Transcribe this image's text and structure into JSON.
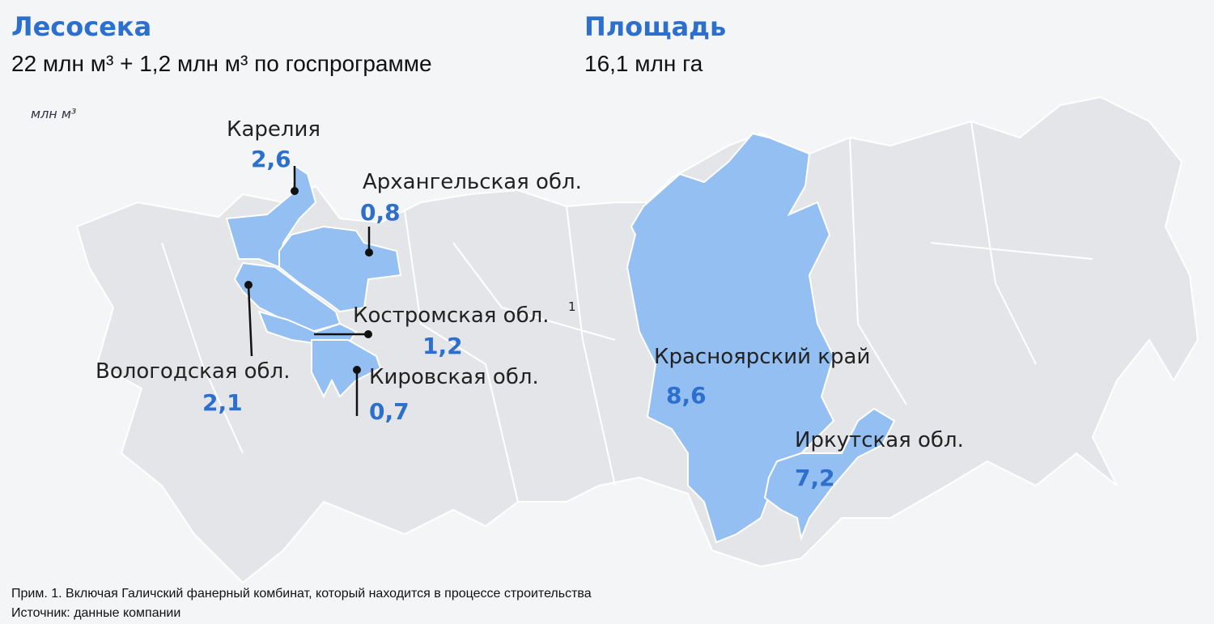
{
  "header": {
    "left": {
      "title": "Лесосека",
      "text": "22 млн м³ + 1,2 млн м³ по госпрограмме"
    },
    "right": {
      "title": "Площадь",
      "text": "16,1 млн га"
    }
  },
  "unit": "млн м³",
  "regions": [
    {
      "name": "Карелия",
      "value": "2,6"
    },
    {
      "name": "Архангельская обл.",
      "value": "0,8"
    },
    {
      "name": "Костромская обл.",
      "footnote_mark": "1",
      "value": "1,2"
    },
    {
      "name": "Вологодская обл.",
      "value": "2,1"
    },
    {
      "name": "Кировская обл.",
      "value": "0,7"
    },
    {
      "name": "Красноярский край",
      "value": "8,6"
    },
    {
      "name": "Иркутская обл.",
      "value": "7,2"
    }
  ],
  "footnotes": [
    "Прим. 1. Включая Галичский фанерный комбинат, который находится в процессе строительства",
    "Источник: данные компании"
  ]
}
